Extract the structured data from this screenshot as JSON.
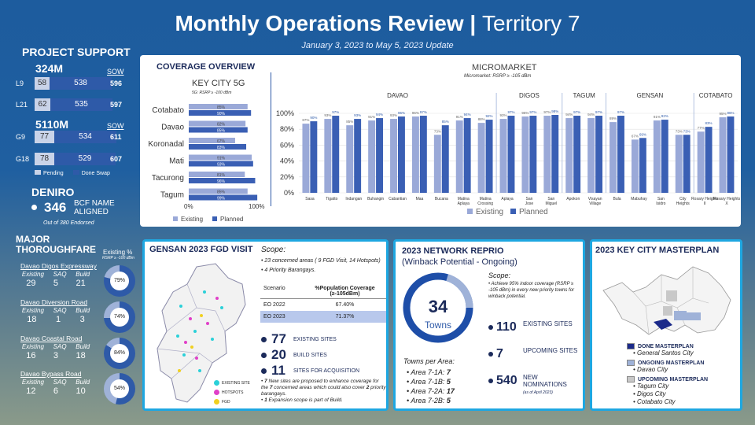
{
  "header": {
    "title_main": "Monthly Operations Review |",
    "title_thin": "Territory 7",
    "subtitle": "January 3, 2023 to May 5, 2023 Update"
  },
  "project_support": {
    "title": "PROJECT SUPPORT",
    "m324": "324M",
    "sow": "SOW",
    "m5110": "5110M",
    "rows": [
      {
        "label": "L9",
        "pending": "58",
        "done": "538",
        "sow": "596"
      },
      {
        "label": "L21",
        "pending": "62",
        "done": "535",
        "sow": "597"
      },
      {
        "label": "G9",
        "pending": "77",
        "done": "534",
        "sow": "611"
      },
      {
        "label": "G18",
        "pending": "78",
        "done": "529",
        "sow": "607"
      }
    ],
    "legend_pending": "Pending",
    "legend_done": "Done Swap"
  },
  "deniro": {
    "title": "DENIRO",
    "value": "346",
    "label": "BCF NAME ALIGNED",
    "note": "Out of 380 Endorsed"
  },
  "thoroughfare": {
    "title": "MAJOR THOROUGHFARE",
    "existing_pct": "Existing %",
    "rsrp": "RSRP ≥ -100 dBm",
    "col_existing": "Existing",
    "col_saq": "SAQ",
    "col_build": "Build",
    "roads": [
      {
        "name": "Davao Digos Expressway",
        "existing": "29",
        "saq": "5",
        "build": "21",
        "pct": "79%",
        "val": 79
      },
      {
        "name": "Davao Diversion Road",
        "existing": "18",
        "saq": "1",
        "build": "3",
        "pct": "74%",
        "val": 74
      },
      {
        "name": "Davao Coastal Road",
        "existing": "16",
        "saq": "3",
        "build": "18",
        "pct": "84%",
        "val": 84
      },
      {
        "name": "Davao Bypass Road",
        "existing": "12",
        "saq": "6",
        "build": "10",
        "pct": "54%",
        "val": 54
      }
    ]
  },
  "coverage": {
    "title": "COVERAGE OVERVIEW",
    "keycity_title": "KEY CITY 5G",
    "keycity_sub": "5G: RSRP ≥ -100 dBm",
    "micro_title": "MICROMARKET",
    "micro_sub": "Micromarket: RSRP ≥ -105 dBm"
  },
  "chart_data": [
    {
      "type": "bar",
      "orientation": "horizontal",
      "title": "KEY CITY 5G",
      "categories": [
        "Cotabato",
        "Davao",
        "Koronadal",
        "Mati",
        "Tacurong",
        "Tagum"
      ],
      "series": [
        {
          "name": "Existing",
          "values": [
            85,
            82,
            67,
            91,
            81,
            85
          ]
        },
        {
          "name": "Planned",
          "values": [
            90,
            85,
            83,
            93,
            96,
            99
          ]
        }
      ],
      "data_labels_existing": [
        "85%",
        "82%",
        "67%",
        "91%",
        "81%",
        "85%"
      ],
      "data_labels_planned": [
        "90%",
        "85%",
        "83%",
        "93%",
        "96%",
        "99%"
      ],
      "xtick_labels": [
        "0%",
        "100%"
      ],
      "xlim": [
        0,
        100
      ],
      "legend": "bottom-left",
      "legend_existing": "Existing",
      "legend_planned": "Planned"
    },
    {
      "type": "bar",
      "title": "MICROMARKET",
      "categories": [
        "Sasa",
        "Tigatto",
        "Indangan",
        "Buhangin",
        "Cabantian",
        "Maa",
        "Bucana",
        "Matina Aplaya",
        "Matina Crossing",
        "Aplaya",
        "San Jose",
        "San Miguel",
        "Apokon",
        "Visayan Village",
        "Bula",
        "Mabuhay",
        "San Isidro",
        "City Heights",
        "Rosary Heights II",
        "Rosary Heights X"
      ],
      "groups": [
        {
          "name": "DAVAO"
        },
        {
          "name": "DIGOS"
        },
        {
          "name": "TAGUM"
        },
        {
          "name": "GENSAN"
        },
        {
          "name": "COTABATO"
        }
      ],
      "series": [
        {
          "name": "Existing",
          "values": [
            87,
            93,
            85,
            91,
            93,
            96,
            73,
            91,
            88,
            93,
            96,
            97,
            94,
            94,
            89,
            67,
            91,
            73,
            77,
            95
          ]
        },
        {
          "name": "Planned",
          "values": [
            90,
            97,
            93,
            94,
            96,
            97,
            85,
            94,
            92,
            97,
            97,
            98,
            97,
            97,
            97,
            69,
            92,
            73,
            83,
            96
          ]
        }
      ],
      "data_labels_existing": [
        "87%",
        "93%",
        "85%",
        "91%",
        "93%",
        "96%",
        "73%",
        "91%",
        "88%",
        "93%",
        "96%",
        "97%",
        "94%",
        "94%",
        "89%",
        "67%",
        "91%",
        "73%",
        "77%",
        "95%"
      ],
      "data_labels_planned": [
        "90%",
        "97%",
        "93%",
        "94%",
        "96%",
        "97%",
        "85%",
        "94%",
        "92%",
        "97%",
        "97%",
        "98%",
        "97%",
        "97%",
        "97%",
        "69%",
        "92%",
        "73%",
        "83%",
        "96%"
      ],
      "ytick_labels": [
        "0%",
        "20%",
        "40%",
        "60%",
        "80%",
        "100%"
      ],
      "ylim": [
        0,
        100
      ],
      "legend": "bottom",
      "legend_existing": "Existing",
      "legend_planned": "Planned"
    },
    {
      "type": "table",
      "title": "Scope",
      "columns": [
        "Scenario",
        "%Population Coverage (≥-105dBm)"
      ],
      "rows": [
        [
          "EO 2022",
          "67.40%"
        ],
        [
          "EO 2023",
          "71.37%"
        ]
      ]
    }
  ],
  "gensan": {
    "title": "GENSAN 2023 FGD VISIT",
    "scope": "Scope:",
    "s1": "23 concerned areas ( 9 FGD Visit, 14 Hotspots)",
    "s2": "4 Priority Barangays.",
    "stats": [
      {
        "n": "77",
        "label": "EXISTING SITES"
      },
      {
        "n": "20",
        "label": "BUILD SITES"
      },
      {
        "n": "11",
        "label": "SITES FOR ACQUISITION"
      }
    ],
    "note1_a": "7",
    "note1_b": " New sites are proposed to enhance coverage for the ",
    "note1_c": "7",
    "note1_d": " concerned areas which could also cover ",
    "note1_e": "2",
    "note1_f": " priority barangays.",
    "note2_a": "1",
    "note2_b": " Expansion scope is part of Build.",
    "legend": [
      "EXISTING SITE",
      "HOTSPOTS",
      "FGD"
    ]
  },
  "reprio": {
    "title": "2023 NETWORK REPRIO",
    "sub": "(Winback Potential - Ongoing)",
    "towns_n": "34",
    "towns_lbl": "Towns",
    "per_area": "Towns per Area:",
    "areas": [
      {
        "name": "Area 7-1A:",
        "n": "7"
      },
      {
        "name": "Area 7-1B:",
        "n": "5"
      },
      {
        "name": "Area 7-2A:",
        "n": "17"
      },
      {
        "name": "Area 7-2B:",
        "n": "5"
      }
    ],
    "scope": "Scope:",
    "scope_text": "Achieve 95% indoor coverage (RSRP ≥ -105 dBm) in every new priority towns for winback potential.",
    "stats": [
      {
        "n": "110",
        "label": "EXISTING SITES"
      },
      {
        "n": "7",
        "label": "UPCOMING SITES"
      },
      {
        "n": "540",
        "label": "NEW NOMINATIONS",
        "note": "(as of April 2023)"
      }
    ]
  },
  "masterplan": {
    "title": "2023 KEY CITY MASTERPLAN",
    "done": "DONE MASTERPLAN",
    "done_items": [
      "General Santos City"
    ],
    "ongoing": "ONGOING MASTERPLAN",
    "ongoing_items": [
      "Davao City"
    ],
    "upcoming": "UPCOMING MASTERPLAN",
    "upcoming_items": [
      "Tagum City",
      "Digos City",
      "Cotabato City"
    ]
  },
  "colors": {
    "existing": "#9aa9d8",
    "planned": "#3a5fb4",
    "accent": "#1ea7e1",
    "navy": "#1b2a5a"
  }
}
